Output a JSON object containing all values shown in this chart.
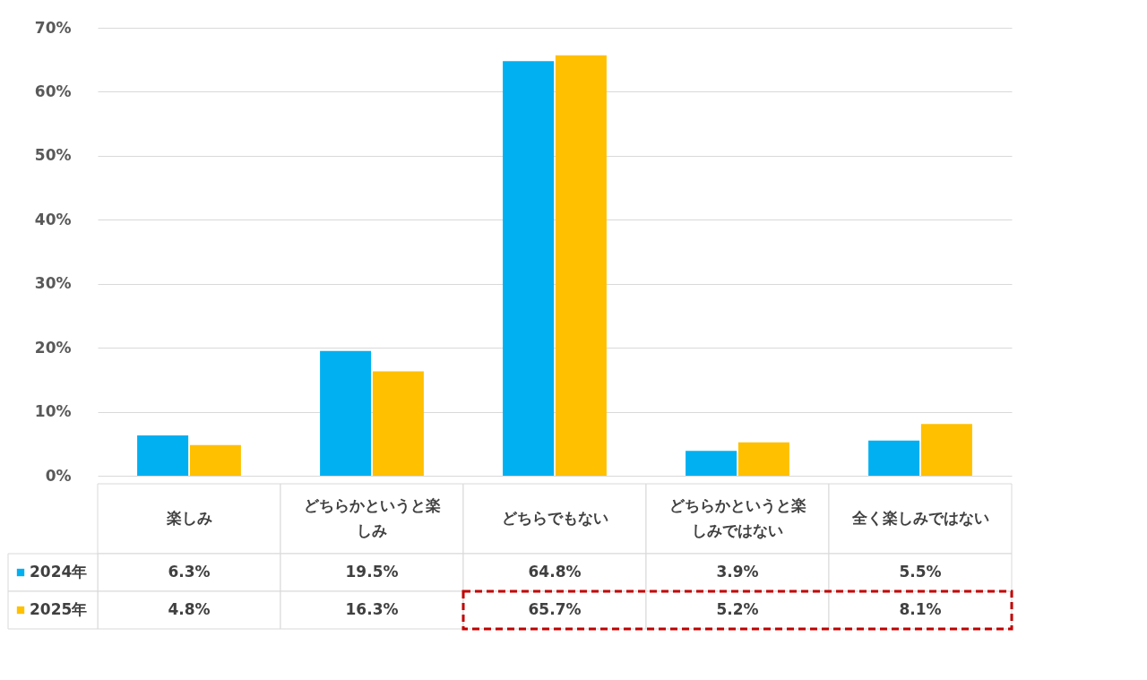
{
  "chart_data": {
    "type": "bar",
    "categories": [
      "楽しみ",
      "どちらかというと楽しみ",
      "どちらでもない",
      "どちらかというと楽しみではない",
      "全く楽しみではない"
    ],
    "series": [
      {
        "name": "2024年",
        "color": "#00b0f0",
        "values": [
          6.3,
          19.5,
          64.8,
          3.9,
          5.5
        ],
        "value_labels": [
          "6.3%",
          "19.5%",
          "64.8%",
          "3.9%",
          "5.5%"
        ]
      },
      {
        "name": "2025年",
        "color": "#ffc000",
        "values": [
          4.8,
          16.3,
          65.7,
          5.2,
          8.1
        ],
        "value_labels": [
          "4.8%",
          "16.3%",
          "65.7%",
          "5.2%",
          "8.1%"
        ]
      }
    ],
    "ylim": [
      0,
      70
    ],
    "yticks": [
      {
        "value": 0,
        "label": "0%"
      },
      {
        "value": 10,
        "label": "10%"
      },
      {
        "value": 20,
        "label": "20%"
      },
      {
        "value": 30,
        "label": "30%"
      },
      {
        "value": 40,
        "label": "40%"
      },
      {
        "value": 50,
        "label": "50%"
      },
      {
        "value": 60,
        "label": "60%"
      },
      {
        "value": 70,
        "label": "70%"
      }
    ],
    "grid": "y",
    "legend": "bottom"
  }
}
